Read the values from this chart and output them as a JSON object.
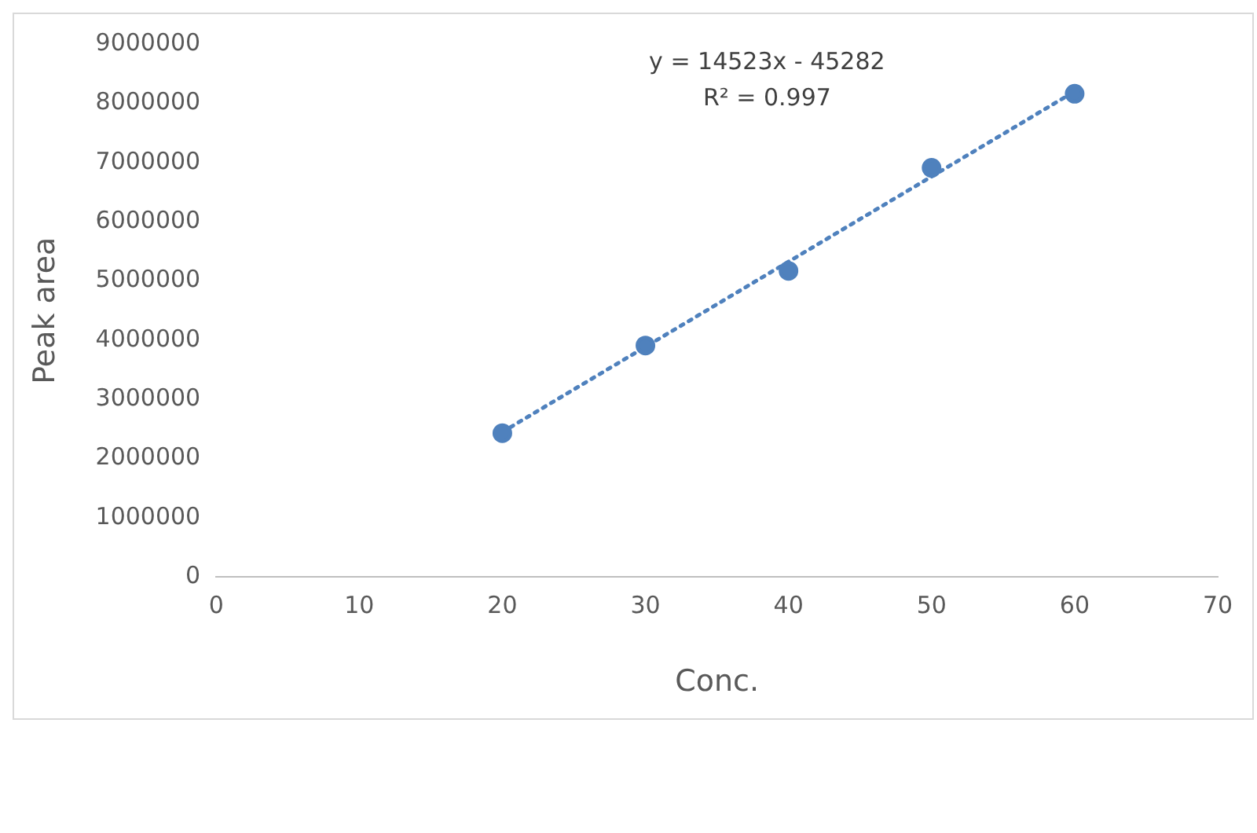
{
  "chart_data": {
    "type": "scatter",
    "xlabel": "Conc.",
    "ylabel": "Peak area",
    "xlim": [
      0,
      70
    ],
    "xticks": [
      0,
      10,
      20,
      30,
      40,
      50,
      60,
      70
    ],
    "ylim": [
      0,
      9000000
    ],
    "yticks": [
      0,
      1000000,
      2000000,
      3000000,
      4000000,
      5000000,
      6000000,
      7000000,
      8000000,
      9000000
    ],
    "grid": false,
    "legend": false,
    "marker": "circle",
    "annotations": [
      "y = 14523x - 45282",
      "R² = 0.997"
    ],
    "series": [
      {
        "color": "#4f81bd",
        "x": [
          20,
          30,
          40,
          50,
          60
        ],
        "values": [
          2430000,
          3910000,
          5170000,
          6910000,
          8160000
        ]
      },
      {
        "type": "line",
        "color": "#4f81bd",
        "line_style": "dotted",
        "marker": "none",
        "x": [
          20,
          60
        ],
        "values": [
          2450000,
          8200000
        ]
      }
    ]
  }
}
